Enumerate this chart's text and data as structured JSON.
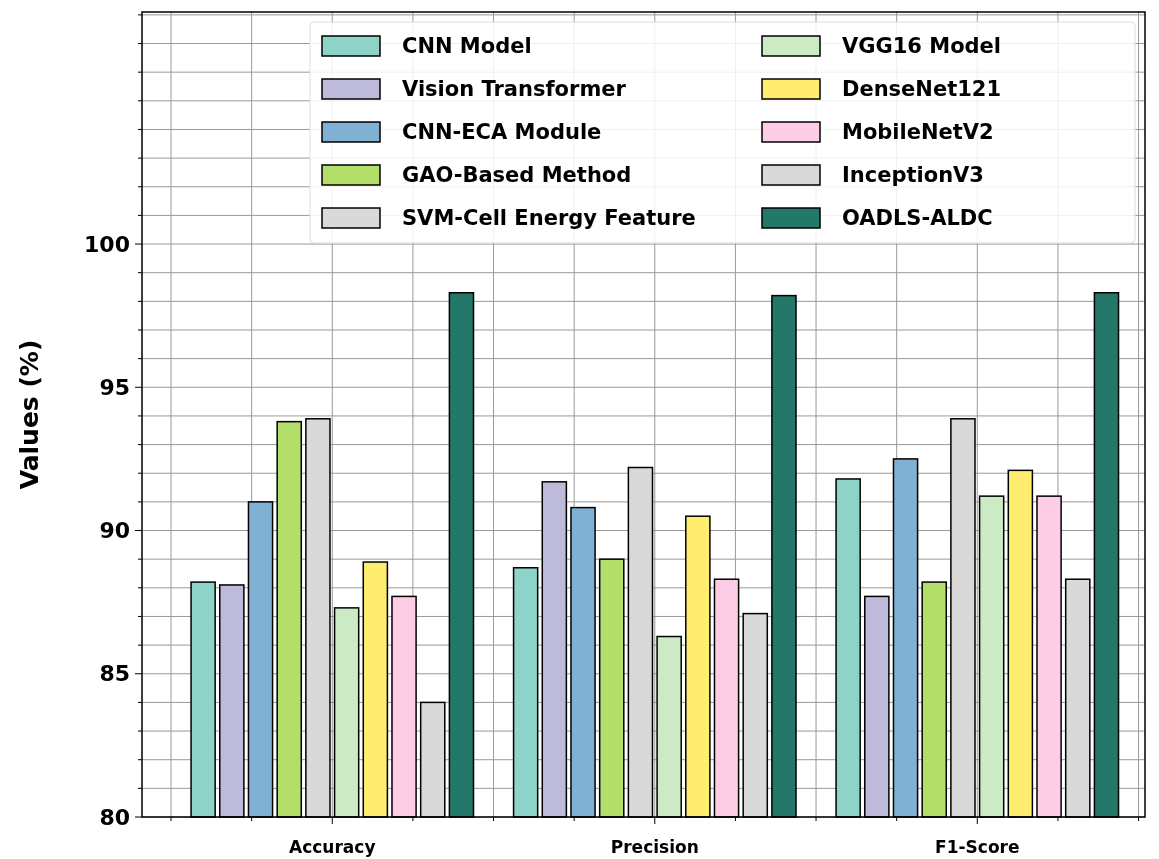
{
  "chart_data": {
    "type": "bar",
    "ylabel": "Values (%)",
    "categories": [
      "Accuracy",
      "Precision",
      "F1-Score"
    ],
    "ylim": [
      80,
      108.1
    ],
    "yticks": [
      80,
      {
        "value": 81,
        "label": null
      },
      {
        "value": 82,
        "label": null
      },
      {
        "value": 83,
        "label": null
      },
      {
        "value": 84,
        "label": null
      },
      85,
      {
        "value": 86,
        "label": null
      },
      {
        "value": 87,
        "label": null
      },
      {
        "value": 88,
        "label": null
      },
      {
        "value": 89,
        "label": null
      },
      90,
      {
        "value": 91,
        "label": null
      },
      {
        "value": 92,
        "label": null
      },
      {
        "value": 93,
        "label": null
      },
      {
        "value": 94,
        "label": null
      },
      95,
      {
        "value": 96,
        "label": null
      },
      {
        "value": 97,
        "label": null
      },
      {
        "value": 98,
        "label": null
      },
      {
        "value": 99,
        "label": null
      },
      100,
      {
        "value": 101,
        "label": null
      },
      {
        "value": 102,
        "label": null
      },
      {
        "value": 103,
        "label": null
      },
      {
        "value": 104,
        "label": null
      },
      {
        "value": 105,
        "label": null
      },
      {
        "value": 106,
        "label": null
      },
      {
        "value": 107,
        "label": null
      },
      {
        "value": 108,
        "label": null
      }
    ],
    "grid": true,
    "legend": "top right",
    "series": [
      {
        "name": "CNN Model",
        "color": "#8dd3c7",
        "values": [
          88.2,
          88.7,
          91.8
        ]
      },
      {
        "name": "Vision Transformer",
        "color": "#bebada",
        "values": [
          88.1,
          91.7,
          87.7
        ]
      },
      {
        "name": "CNN-ECA Module",
        "color": "#80b1d3",
        "values": [
          91.0,
          90.8,
          92.5
        ]
      },
      {
        "name": "GAO-Based Method",
        "color": "#b3de69",
        "values": [
          93.8,
          89.0,
          88.2
        ]
      },
      {
        "name": "SVM-Cell Energy Feature",
        "color": "#d9d9d9",
        "values": [
          93.9,
          92.2,
          93.9
        ]
      },
      {
        "name": "VGG16 Model",
        "color": "#ccebc5",
        "values": [
          87.3,
          86.3,
          91.2
        ]
      },
      {
        "name": "DenseNet121",
        "color": "#ffed6f",
        "values": [
          88.9,
          90.5,
          92.1
        ]
      },
      {
        "name": "MobileNetV2",
        "color": "#fccde5",
        "values": [
          87.7,
          88.3,
          91.2
        ]
      },
      {
        "name": "InceptionV3",
        "color": "#d9d9d9",
        "values": [
          84.0,
          87.1,
          88.3
        ]
      },
      {
        "name": "OADLS-ALDC",
        "color": "#24786a",
        "values": [
          98.3,
          98.2,
          98.3
        ]
      }
    ]
  }
}
